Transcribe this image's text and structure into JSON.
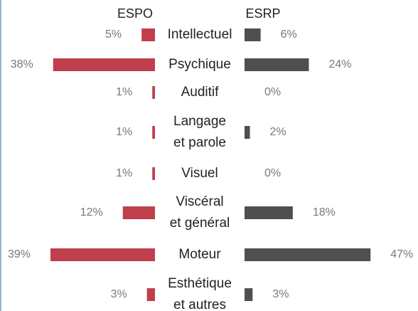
{
  "chart_data": {
    "type": "butterfly",
    "categories": [
      [
        "Intellectuel"
      ],
      [
        "Psychique"
      ],
      [
        "Auditif"
      ],
      [
        "Langage",
        "et parole"
      ],
      [
        "Visuel"
      ],
      [
        "Viscéral",
        "et général"
      ],
      [
        "Moteur"
      ],
      [
        "Esthétique",
        "et autres"
      ]
    ],
    "series": [
      {
        "name": "ESPO",
        "color": "#c13e4d",
        "values": [
          5,
          38,
          1,
          1,
          1,
          12,
          39,
          3
        ],
        "value_labels": [
          "5%",
          "38%",
          "1%",
          "1%",
          "1%",
          "12%",
          "39%",
          "3%"
        ]
      },
      {
        "name": "ESRP",
        "color": "#4f4f4f",
        "values": [
          6,
          24,
          0,
          2,
          0,
          18,
          47,
          3
        ],
        "value_labels": [
          "6%",
          "24%",
          "0%",
          "2%",
          "0%",
          "18%",
          "47%",
          "3%"
        ]
      }
    ]
  }
}
